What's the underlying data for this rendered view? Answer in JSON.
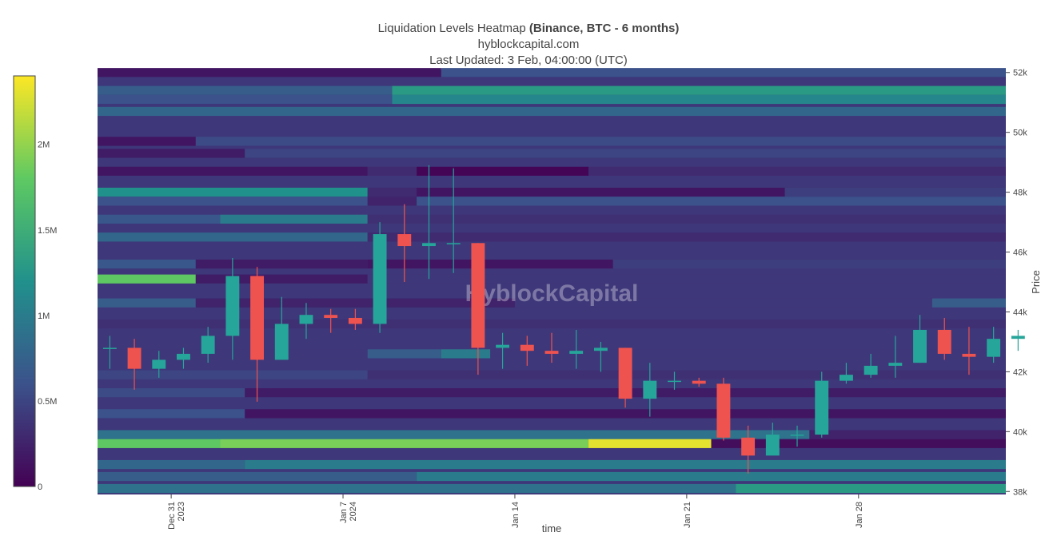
{
  "title": {
    "main": "Liquidation Levels Heatmap",
    "main_bold": "(Binance, BTC - 6 months)",
    "source": "hyblockcapital.com",
    "updated": "Last Updated: 3 Feb, 04:00:00 (UTC)"
  },
  "watermark": "HyblockCapital",
  "colors": {
    "up": "#26a69a",
    "down": "#ef5350",
    "colorscale": [
      "#440154",
      "#3b528b",
      "#21918c",
      "#5ec962",
      "#fde725"
    ]
  },
  "chart_data": {
    "type": "heatmap",
    "xlabel": "time",
    "ylabel": "Price",
    "x_range": [
      "2023-12-28",
      "2024-02-03"
    ],
    "y_range": [
      37900,
      52100
    ],
    "x_ticks": [
      {
        "date": "2023-12-31",
        "line1": "Dec 31",
        "line2": "2023"
      },
      {
        "date": "2024-01-07",
        "line1": "Jan 7",
        "line2": "2024"
      },
      {
        "date": "2024-01-14",
        "line1": "Jan 14",
        "line2": ""
      },
      {
        "date": "2024-01-21",
        "line1": "Jan 21",
        "line2": ""
      },
      {
        "date": "2024-01-28",
        "line1": "Jan 28",
        "line2": ""
      }
    ],
    "y_ticks": [
      {
        "value": 38000,
        "label": "38k"
      },
      {
        "value": 40000,
        "label": "40k"
      },
      {
        "value": 42000,
        "label": "42k"
      },
      {
        "value": 44000,
        "label": "44k"
      },
      {
        "value": 46000,
        "label": "46k"
      },
      {
        "value": 48000,
        "label": "48k"
      },
      {
        "value": 50000,
        "label": "50k"
      },
      {
        "value": 52000,
        "label": "52k"
      }
    ],
    "colorbar": {
      "min": 0,
      "max": 2400000,
      "ticks": [
        {
          "value": 0,
          "label": "0"
        },
        {
          "value": 500000,
          "label": "0.5M"
        },
        {
          "value": 1000000,
          "label": "1M"
        },
        {
          "value": 1500000,
          "label": "1.5M"
        },
        {
          "value": 2000000,
          "label": "2M"
        }
      ]
    },
    "heatmap": {
      "band_height": 300,
      "background": 400000,
      "levels": [
        {
          "price": 52000,
          "segments": [
            [
              "2023-12-28",
              "2024-01-11",
              150000
            ],
            [
              "2024-01-11",
              "2024-02-03",
              600000
            ]
          ]
        },
        {
          "price": 51400,
          "segments": [
            [
              "2023-12-28",
              "2024-01-09",
              700000
            ],
            [
              "2024-01-09",
              "2024-02-03",
              1300000
            ]
          ]
        },
        {
          "price": 51100,
          "segments": [
            [
              "2023-12-28",
              "2024-01-09",
              600000
            ],
            [
              "2024-01-09",
              "2024-02-03",
              1100000
            ]
          ]
        },
        {
          "price": 50700,
          "segments": [
            [
              "2023-12-28",
              "2024-02-03",
              800000
            ]
          ]
        },
        {
          "price": 49700,
          "segments": [
            [
              "2023-12-28",
              "2024-01-01",
              150000
            ],
            [
              "2024-01-01",
              "2024-02-03",
              550000
            ]
          ]
        },
        {
          "price": 49300,
          "segments": [
            [
              "2023-12-28",
              "2024-01-03",
              200000
            ],
            [
              "2024-01-03",
              "2024-02-03",
              500000
            ]
          ]
        },
        {
          "price": 48700,
          "segments": [
            [
              "2023-12-28",
              "2024-01-08",
              150000
            ],
            [
              "2024-01-08",
              "2024-01-10",
              300000
            ],
            [
              "2024-01-10",
              "2024-01-17",
              30000
            ],
            [
              "2024-01-17",
              "2024-02-03",
              300000
            ]
          ]
        },
        {
          "price": 48000,
          "segments": [
            [
              "2023-12-28",
              "2024-01-08",
              1200000
            ],
            [
              "2024-01-08",
              "2024-01-10",
              300000
            ],
            [
              "2024-01-10",
              "2024-01-25",
              150000
            ],
            [
              "2024-01-25",
              "2024-02-03",
              450000
            ]
          ]
        },
        {
          "price": 47700,
          "segments": [
            [
              "2023-12-28",
              "2024-01-08",
              600000
            ],
            [
              "2024-01-08",
              "2024-01-10",
              250000
            ],
            [
              "2024-01-10",
              "2024-02-03",
              600000
            ]
          ]
        },
        {
          "price": 47100,
          "segments": [
            [
              "2023-12-28",
              "2024-01-02",
              650000
            ],
            [
              "2024-01-02",
              "2024-01-08",
              1000000
            ],
            [
              "2024-01-08",
              "2024-02-03",
              350000
            ]
          ]
        },
        {
          "price": 46500,
          "segments": [
            [
              "2023-12-28",
              "2024-01-08",
              800000
            ],
            [
              "2024-01-08",
              "2024-02-03",
              300000
            ]
          ]
        },
        {
          "price": 45600,
          "segments": [
            [
              "2023-12-28",
              "2024-01-01",
              650000
            ],
            [
              "2024-01-01",
              "2024-01-08",
              200000
            ],
            [
              "2024-01-08",
              "2024-01-18",
              150000
            ],
            [
              "2024-01-18",
              "2024-02-03",
              450000
            ]
          ]
        },
        {
          "price": 45100,
          "segments": [
            [
              "2023-12-28",
              "2024-01-01",
              1800000
            ],
            [
              "2024-01-01",
              "2024-01-08",
              200000
            ],
            [
              "2024-01-08",
              "2024-02-03",
              400000
            ]
          ]
        },
        {
          "price": 44300,
          "segments": [
            [
              "2023-12-28",
              "2024-01-01",
              700000
            ],
            [
              "2024-01-01",
              "2024-01-14",
              250000
            ],
            [
              "2024-01-14",
              "2024-01-31",
              400000
            ],
            [
              "2024-01-31",
              "2024-02-03",
              700000
            ]
          ]
        },
        {
          "price": 43600,
          "segments": [
            [
              "2023-12-28",
              "2024-02-03",
              350000
            ]
          ]
        },
        {
          "price": 42600,
          "segments": [
            [
              "2023-12-28",
              "2024-01-08",
              400000
            ],
            [
              "2024-01-08",
              "2024-01-11",
              700000
            ],
            [
              "2024-01-11",
              "2024-01-13",
              1000000
            ],
            [
              "2024-01-13",
              "2024-02-03",
              400000
            ]
          ]
        },
        {
          "price": 41900,
          "segments": [
            [
              "2023-12-28",
              "2024-01-08",
              500000
            ],
            [
              "2024-01-08",
              "2024-02-03",
              350000
            ]
          ]
        },
        {
          "price": 41300,
          "segments": [
            [
              "2023-12-28",
              "2024-01-03",
              550000
            ],
            [
              "2024-01-03",
              "2024-02-03",
              200000
            ]
          ]
        },
        {
          "price": 40600,
          "segments": [
            [
              "2023-12-28",
              "2024-01-03",
              600000
            ],
            [
              "2024-01-03",
              "2024-02-03",
              150000
            ]
          ]
        },
        {
          "price": 39900,
          "segments": [
            [
              "2023-12-28",
              "2024-01-26",
              900000
            ],
            [
              "2024-01-26",
              "2024-02-03",
              250000
            ]
          ]
        },
        {
          "price": 39600,
          "segments": [
            [
              "2023-12-28",
              "2024-01-02",
              1800000
            ],
            [
              "2024-01-02",
              "2024-01-17",
              1900000
            ],
            [
              "2024-01-17",
              "2024-01-22",
              2300000
            ],
            [
              "2024-01-22",
              "2024-02-03",
              100000
            ]
          ]
        },
        {
          "price": 38900,
          "segments": [
            [
              "2023-12-28",
              "2024-01-03",
              800000
            ],
            [
              "2024-01-03",
              "2024-02-03",
              1000000
            ]
          ]
        },
        {
          "price": 38500,
          "segments": [
            [
              "2023-12-28",
              "2024-01-10",
              700000
            ],
            [
              "2024-01-10",
              "2024-02-03",
              1000000
            ]
          ]
        },
        {
          "price": 38100,
          "segments": [
            [
              "2023-12-28",
              "2024-01-23",
              900000
            ],
            [
              "2024-01-23",
              "2024-02-03",
              1300000
            ]
          ]
        }
      ]
    },
    "price_series": {
      "name": "BTC",
      "dates": [
        "2023-12-28",
        "2023-12-29",
        "2023-12-30",
        "2023-12-31",
        "2024-01-01",
        "2024-01-02",
        "2024-01-03",
        "2024-01-04",
        "2024-01-05",
        "2024-01-06",
        "2024-01-07",
        "2024-01-08",
        "2024-01-09",
        "2024-01-10",
        "2024-01-11",
        "2024-01-12",
        "2024-01-13",
        "2024-01-14",
        "2024-01-15",
        "2024-01-16",
        "2024-01-17",
        "2024-01-18",
        "2024-01-19",
        "2024-01-20",
        "2024-01-21",
        "2024-01-22",
        "2024-01-23",
        "2024-01-24",
        "2024-01-25",
        "2024-01-26",
        "2024-01-27",
        "2024-01-28",
        "2024-01-29",
        "2024-01-30",
        "2024-01-31",
        "2024-02-01",
        "2024-02-02",
        "2024-02-03"
      ],
      "close": [
        42800,
        42100,
        42400,
        42600,
        43200,
        45200,
        42400,
        43600,
        43900,
        43800,
        43600,
        46600,
        46200,
        46300,
        46300,
        42800,
        42900,
        42700,
        42600,
        42700,
        42800,
        41100,
        41700,
        41700,
        41600,
        39800,
        39200,
        39900,
        39900,
        41700,
        41900,
        42200,
        42300,
        43400,
        42600,
        42500,
        43100,
        43200
      ],
      "high": [
        43200,
        43100,
        42700,
        42800,
        43500,
        45800,
        45500,
        44500,
        44300,
        44100,
        44100,
        47000,
        47600,
        48900,
        48800,
        46300,
        43300,
        43200,
        43300,
        43400,
        43000,
        42800,
        42300,
        42000,
        41800,
        41800,
        40200,
        40300,
        40200,
        42000,
        42300,
        42600,
        43200,
        43900,
        43800,
        43500,
        43500,
        43400
      ],
      "low": [
        42100,
        41400,
        41800,
        42100,
        42300,
        42400,
        41000,
        42400,
        43100,
        43300,
        43400,
        43300,
        45000,
        45100,
        45300,
        41900,
        42100,
        42200,
        42300,
        42100,
        42000,
        40800,
        40500,
        41400,
        41500,
        39700,
        38600,
        39300,
        39500,
        39800,
        41600,
        41800,
        41800,
        42300,
        42400,
        41900,
        42300,
        42700
      ]
    }
  }
}
